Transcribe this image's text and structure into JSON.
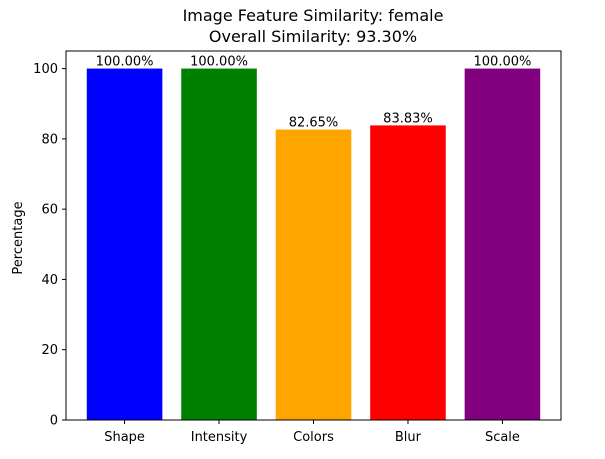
{
  "chart_data": {
    "type": "bar",
    "title": "Image Feature Similarity: female",
    "subtitle": "Overall Similarity: 93.30%",
    "xlabel": "",
    "ylabel": "Percentage",
    "categories": [
      "Shape",
      "Intensity",
      "Colors",
      "Blur",
      "Scale"
    ],
    "values": [
      100.0,
      100.0,
      82.65,
      83.83,
      100.0
    ],
    "data_labels": [
      "100.00%",
      "100.00%",
      "82.65%",
      "83.83%",
      "100.00%"
    ],
    "colors": [
      "#0000ff",
      "#008000",
      "#ffa500",
      "#ff0000",
      "#800080"
    ],
    "ylim": [
      0,
      105
    ],
    "yticks": [
      0,
      20,
      40,
      60,
      80,
      100
    ],
    "grid": false,
    "legend": "none"
  }
}
